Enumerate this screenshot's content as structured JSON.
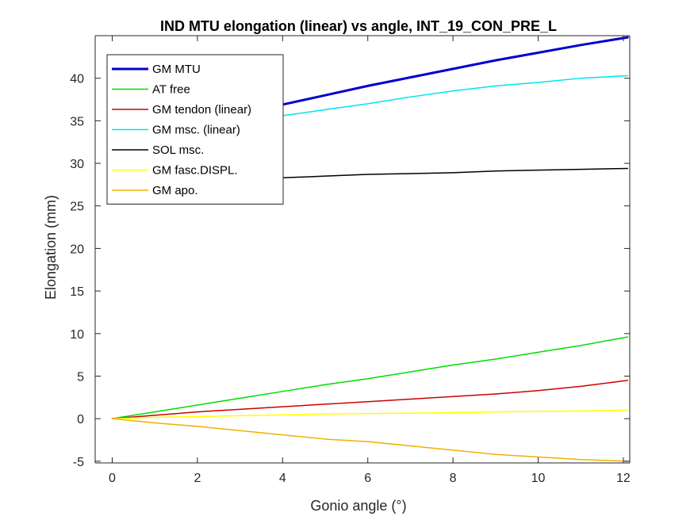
{
  "chart_data": {
    "type": "line",
    "title": "IND MTU elongation (linear) vs angle, INT_19_CON_PRE_L",
    "xlabel": "Gonio angle (°)",
    "ylabel": "Elongation (mm)",
    "xlim": [
      -0.4,
      12.15
    ],
    "ylim": [
      -5.2,
      45
    ],
    "xticks": [
      "0",
      "2",
      "4",
      "6",
      "8",
      "10",
      "12"
    ],
    "yticks": [
      "-5",
      "0",
      "5",
      "10",
      "15",
      "20",
      "25",
      "30",
      "35",
      "40"
    ],
    "grid": false,
    "legend_position": "top-left",
    "x": [
      0,
      1,
      2,
      3,
      4,
      5,
      6,
      7,
      8,
      9,
      10,
      11,
      12.1
    ],
    "series": [
      {
        "name": "GM MTU",
        "color": "#0000cc",
        "width": 3,
        "values": [
          32.0,
          33.5,
          34.6,
          35.8,
          36.9,
          38.0,
          39.1,
          40.1,
          41.1,
          42.1,
          43.0,
          43.9,
          44.8
        ]
      },
      {
        "name": "AT free",
        "color": "#00dd00",
        "width": 1.5,
        "values": [
          0,
          0.8,
          1.6,
          2.4,
          3.2,
          4.0,
          4.7,
          5.5,
          6.3,
          7.0,
          7.8,
          8.6,
          9.6
        ]
      },
      {
        "name": "GM tendon (linear)",
        "color": "#cc0000",
        "width": 1.5,
        "values": [
          0,
          0.4,
          0.8,
          1.1,
          1.4,
          1.7,
          2.0,
          2.3,
          2.6,
          2.9,
          3.3,
          3.8,
          4.5
        ]
      },
      {
        "name": "GM msc. (linear)",
        "color": "#00e5ee",
        "width": 1.5,
        "values": [
          32.0,
          33.1,
          33.8,
          34.7,
          35.6,
          36.3,
          37.0,
          37.8,
          38.5,
          39.1,
          39.5,
          40.0,
          40.3
        ]
      },
      {
        "name": "SOL msc.",
        "color": "#000000",
        "width": 1.5,
        "values": [
          27.6,
          27.8,
          27.9,
          28.1,
          28.3,
          28.5,
          28.7,
          28.8,
          28.9,
          29.1,
          29.2,
          29.3,
          29.4
        ]
      },
      {
        "name": "GM fasc.DISPL.",
        "color": "#ffff00",
        "width": 1.5,
        "values": [
          0,
          0.15,
          0.25,
          0.35,
          0.45,
          0.55,
          0.6,
          0.65,
          0.7,
          0.8,
          0.85,
          0.9,
          1.0
        ]
      },
      {
        "name": "GM apo.",
        "color": "#f0b000",
        "width": 1.5,
        "values": [
          0,
          -0.5,
          -0.9,
          -1.4,
          -1.9,
          -2.4,
          -2.7,
          -3.2,
          -3.7,
          -4.2,
          -4.5,
          -4.8,
          -5.0
        ]
      }
    ]
  }
}
